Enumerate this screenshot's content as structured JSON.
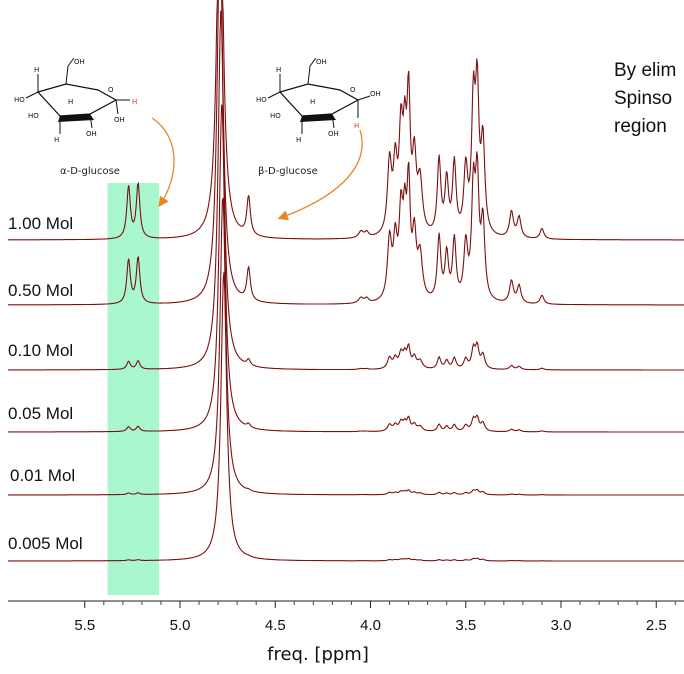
{
  "chart_data": {
    "type": "line",
    "xlabel": "freq. [ppm]",
    "xlim": [
      5.85,
      2.45
    ],
    "x_reversed": true,
    "xticks": [
      "5.5",
      "5.0",
      "4.5",
      "4.0",
      "3.5",
      "3.0",
      "2.5"
    ],
    "series": [
      {
        "name": "1.00 Mol",
        "scale": 1.0
      },
      {
        "name": "0.50 Mol",
        "scale": 0.5
      },
      {
        "name": "0.10 Mol",
        "scale": 0.1
      },
      {
        "name": "0.05 Mol",
        "scale": 0.05
      },
      {
        "name": "0.01 Mol",
        "scale": 0.01
      },
      {
        "name": "0.005 Mol",
        "scale": 0.005
      }
    ],
    "peaks_ppm": {
      "alpha_anomeric": [
        5.27,
        5.22
      ],
      "beta_anomeric": 4.64,
      "water": 4.79,
      "ring_region": [
        3.2,
        3.95
      ]
    },
    "highlight_region_ppm": [
      5.11,
      5.38
    ],
    "highlight_color": "#a8f7cf",
    "line_color": "#7b1010",
    "structures": [
      {
        "label": "α-D-glucose",
        "marked_ppm": 5.22
      },
      {
        "label": "β-D-glucose",
        "marked_ppm": 4.64
      }
    ],
    "arrow_color": "#e8852c"
  },
  "note": {
    "lines": [
      "By elim",
      "Spinso",
      "region"
    ]
  }
}
